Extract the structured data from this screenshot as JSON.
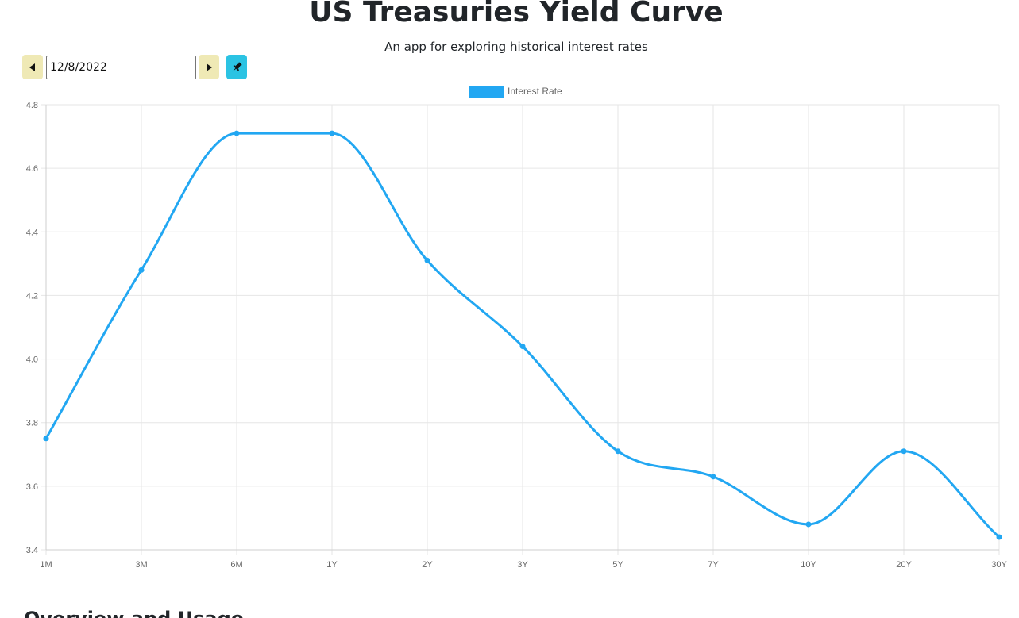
{
  "header": {
    "title": "US Treasuries Yield Curve",
    "subtitle": "An app for exploring historical interest rates"
  },
  "controls": {
    "date_value": "12/8/2022",
    "prev_icon": "caret-left-icon",
    "next_icon": "caret-right-icon",
    "pin_icon": "pin-icon"
  },
  "section": {
    "heading": "Overview and Usage"
  },
  "colors": {
    "series": "#22a7f2",
    "grid": "#e6e6e6",
    "tick_text": "#666666",
    "prev_next_button": "#efe9b5",
    "pin_button": "#2bc3e3"
  },
  "chart_data": {
    "type": "line",
    "categories": [
      "1M",
      "3M",
      "6M",
      "1Y",
      "2Y",
      "3Y",
      "5Y",
      "7Y",
      "10Y",
      "20Y",
      "30Y"
    ],
    "series": [
      {
        "name": "Interest Rate",
        "values": [
          3.75,
          4.28,
          4.71,
          4.71,
          4.31,
          4.04,
          3.71,
          3.63,
          3.48,
          3.71,
          3.44
        ]
      }
    ],
    "yticks": [
      "3.4",
      "3.6",
      "3.8",
      "4.0",
      "4.2",
      "4.4",
      "4.6",
      "4.8"
    ],
    "ylim": [
      3.4,
      4.8
    ],
    "grid": true,
    "legend": "top-center",
    "smooth": true
  }
}
